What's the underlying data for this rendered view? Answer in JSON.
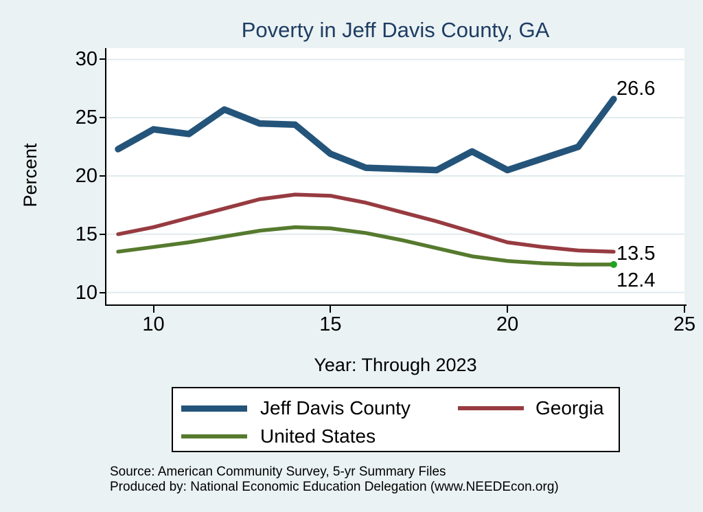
{
  "title": "Poverty in Jeff Davis County, GA",
  "y_axis": {
    "label": "Percent",
    "ticks": [
      10,
      15,
      20,
      25,
      30
    ]
  },
  "x_axis": {
    "label": "Year: Through 2023",
    "ticks": [
      10,
      15,
      20,
      25
    ]
  },
  "chart_data": {
    "type": "line",
    "title": "Poverty in Jeff Davis County, GA",
    "xlabel": "Year: Through 2023",
    "ylabel": "Percent",
    "x_range": [
      8.67,
      25.0
    ],
    "y_range": [
      8.97,
      30.97
    ],
    "grid": true,
    "x": [
      9,
      10,
      11,
      12,
      13,
      14,
      15,
      16,
      17,
      18,
      19,
      20,
      21,
      22,
      23
    ],
    "series": [
      {
        "name": "Jeff Davis County",
        "color": "#24547a",
        "line_width": 9.5,
        "values": [
          22.3,
          24.0,
          23.6,
          25.7,
          24.5,
          24.4,
          21.9,
          20.7,
          20.6,
          20.5,
          22.1,
          20.5,
          21.5,
          22.5,
          26.6
        ],
        "end_label": "26.6"
      },
      {
        "name": "Georgia",
        "color": "#973b41",
        "line_width": 5.5,
        "values": [
          15.0,
          15.6,
          16.4,
          17.2,
          18.0,
          18.4,
          18.3,
          17.7,
          16.9,
          16.1,
          15.2,
          14.3,
          13.9,
          13.6,
          13.5
        ],
        "end_label": "13.5"
      },
      {
        "name": "United States",
        "color": "#567a2e",
        "line_width": 5.5,
        "values": [
          13.5,
          13.9,
          14.3,
          14.8,
          15.3,
          15.6,
          15.5,
          15.1,
          14.5,
          13.8,
          13.1,
          12.7,
          12.5,
          12.4,
          12.4
        ],
        "end_label": "12.4",
        "end_marker_color": "#1fa41f"
      }
    ],
    "legend_position": "bottom"
  },
  "legend": {
    "items": [
      {
        "label": "Jeff Davis County",
        "color": "#24547a"
      },
      {
        "label": "Georgia",
        "color": "#973b41"
      },
      {
        "label": "United States",
        "color": "#567a2e"
      }
    ]
  },
  "source": {
    "line1": "Source: American Community Survey, 5-yr Summary Files",
    "line2": "Produced by: National Economic Education Delegation (www.NEEDEcon.org)"
  },
  "colors": {
    "background": "#eaf2f3",
    "plot_background": "#ffffff",
    "gridline": "#dfebee",
    "title": "#1e3c64",
    "axis": "#000000"
  }
}
